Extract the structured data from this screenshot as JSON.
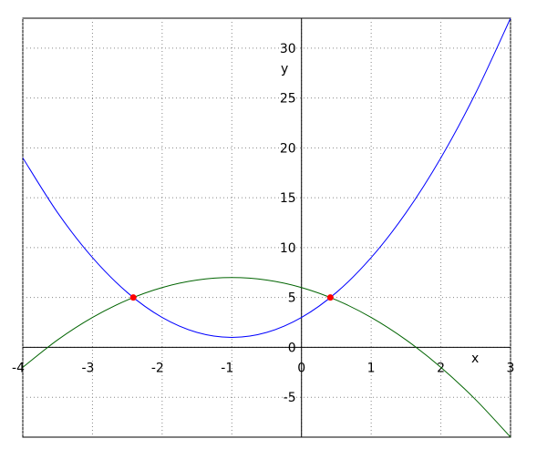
{
  "chart_data": {
    "type": "line",
    "xlabel": "x",
    "ylabel": "y",
    "xlim": [
      -4,
      3
    ],
    "ylim": [
      -9,
      33
    ],
    "grid": true,
    "x_ticks": [
      -4,
      -3,
      -2,
      -1,
      0,
      1,
      2,
      3
    ],
    "y_ticks": [
      -5,
      0,
      5,
      10,
      15,
      20,
      25,
      30
    ],
    "x_tick_labels": [
      "-4",
      "-3",
      "-2",
      "-1",
      "0",
      "1",
      "2",
      "3"
    ],
    "y_tick_labels": [
      "-5",
      "0",
      "5",
      "10",
      "15",
      "20",
      "25",
      "30"
    ],
    "series": [
      {
        "color": "#0000ff",
        "x": [
          -4,
          -3.5,
          -3,
          -2.5,
          -2,
          -1.5,
          -1,
          -0.5,
          0,
          0.5,
          1,
          1.5,
          2,
          2.5,
          3
        ],
        "y": [
          19,
          13.5,
          9,
          5.5,
          3,
          1.5,
          1,
          1.5,
          3,
          5.5,
          9,
          13.5,
          19,
          25.5,
          33
        ]
      },
      {
        "color": "#006400",
        "x": [
          -4,
          -3.5,
          -3,
          -2.5,
          -2,
          -1.5,
          -1,
          -0.5,
          0,
          0.5,
          1,
          1.5,
          2,
          2.5,
          3
        ],
        "y": [
          -2,
          0.75,
          3,
          4.75,
          6,
          6.75,
          7,
          6.75,
          6,
          4.75,
          3,
          0.75,
          -2,
          -5.25,
          -9
        ]
      }
    ],
    "points": {
      "color": "#ff0000",
      "x": [
        -2.414,
        0.414
      ],
      "y": [
        5,
        5
      ]
    }
  }
}
